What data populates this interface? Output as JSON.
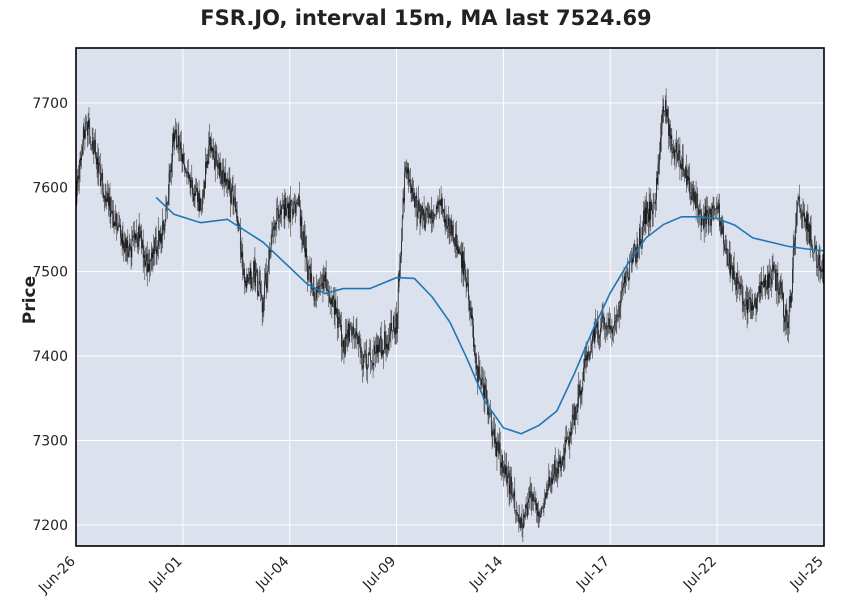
{
  "chart_data": {
    "type": "candlestick",
    "title": "FSR.JO, interval 15m, MA last 7524.69",
    "ylabel": "Price",
    "ylim": [
      7175,
      7765
    ],
    "y_ticks": [
      7200,
      7300,
      7400,
      7500,
      7600,
      7700
    ],
    "x_tick_labels": [
      "Jun-26",
      "Jul-01",
      "Jul-04",
      "Jul-09",
      "Jul-14",
      "Jul-17",
      "Jul-22",
      "Jul-25"
    ],
    "grid": true,
    "background": "#dce1ee",
    "colors": {
      "candle": "#111111",
      "ma": "#1f77b4",
      "grid": "#ffffff"
    },
    "series": [
      {
        "name": "price",
        "close": [
          7590,
          7680,
          7650,
          7600,
          7570,
          7550,
          7520,
          7545,
          7510,
          7530,
          7560,
          7665,
          7640,
          7600,
          7580,
          7650,
          7620,
          7600,
          7580,
          7480,
          7500,
          7460,
          7550,
          7580,
          7570,
          7580,
          7500,
          7470,
          7490,
          7460,
          7410,
          7440,
          7400,
          7390,
          7410,
          7420,
          7440,
          7630,
          7580,
          7560,
          7570,
          7580,
          7550,
          7530,
          7480,
          7380,
          7350,
          7300,
          7270,
          7240,
          7200,
          7230,
          7210,
          7250,
          7270,
          7290,
          7330,
          7380,
          7420,
          7440,
          7430,
          7460,
          7500,
          7530,
          7570,
          7580,
          7700,
          7650,
          7630,
          7600,
          7570,
          7560,
          7580,
          7520,
          7490,
          7470,
          7450,
          7480,
          7500,
          7480,
          7430,
          7590,
          7560,
          7520,
          7505
        ]
      },
      {
        "name": "MA",
        "x": [
          9,
          11,
          14,
          17,
          21,
          24,
          26,
          28,
          30,
          33,
          36,
          38,
          40,
          42,
          44,
          46,
          48,
          50,
          52,
          54,
          56,
          58,
          60,
          62,
          64,
          66,
          68,
          70,
          72,
          74,
          76,
          78,
          80,
          82,
          84
        ],
        "values": [
          7588,
          7568,
          7558,
          7562,
          7535,
          7505,
          7485,
          7474,
          7480,
          7480,
          7493,
          7492,
          7470,
          7440,
          7395,
          7345,
          7315,
          7308,
          7318,
          7335,
          7380,
          7430,
          7475,
          7510,
          7540,
          7556,
          7565,
          7565,
          7563,
          7555,
          7540,
          7535,
          7530,
          7527,
          7524.69
        ]
      }
    ]
  }
}
